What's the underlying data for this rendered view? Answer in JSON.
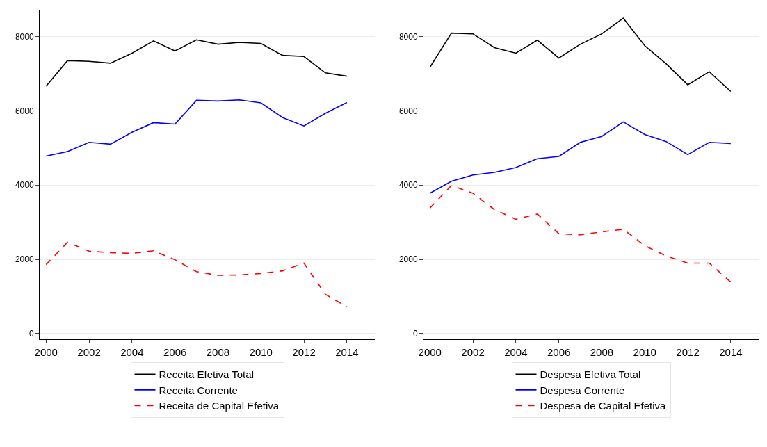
{
  "chart_data": [
    {
      "type": "line",
      "x": [
        2000,
        2001,
        2002,
        2003,
        2004,
        2005,
        2006,
        2007,
        2008,
        2009,
        2010,
        2011,
        2012,
        2013,
        2014
      ],
      "xlim": [
        1999.7,
        2015.3
      ],
      "xticks": [
        2000,
        2002,
        2004,
        2006,
        2008,
        2010,
        2012,
        2014
      ],
      "ylim": [
        -150,
        8700
      ],
      "yticks": [
        0,
        2000,
        4000,
        6000,
        8000
      ],
      "grid": "y",
      "legend": "bottom",
      "marker": "none",
      "series": [
        {
          "name": "Receita Efetiva Total",
          "color": "#000000",
          "line_style": "solid",
          "values": [
            6660,
            7350,
            7330,
            7280,
            7550,
            7880,
            7610,
            7910,
            7790,
            7840,
            7810,
            7490,
            7460,
            7020,
            6930
          ]
        },
        {
          "name": "Receita Corrente",
          "color": "#0000ff",
          "line_style": "solid",
          "values": [
            4780,
            4900,
            5150,
            5100,
            5420,
            5680,
            5640,
            6280,
            6260,
            6290,
            6210,
            5820,
            5590,
            5930,
            6220
          ]
        },
        {
          "name": "Receita de Capital Efetiva",
          "color": "#ff0000",
          "line_style": "dashed",
          "values": [
            1860,
            2460,
            2220,
            2180,
            2160,
            2230,
            1990,
            1670,
            1570,
            1580,
            1620,
            1690,
            1900,
            1060,
            720
          ]
        }
      ]
    },
    {
      "type": "line",
      "x": [
        2000,
        2001,
        2002,
        2003,
        2004,
        2005,
        2006,
        2007,
        2008,
        2009,
        2010,
        2011,
        2012,
        2013,
        2014
      ],
      "xlim": [
        1999.7,
        2015.3
      ],
      "xticks": [
        2000,
        2002,
        2004,
        2006,
        2008,
        2010,
        2012,
        2014
      ],
      "ylim": [
        -150,
        8700
      ],
      "yticks": [
        0,
        2000,
        4000,
        6000,
        8000
      ],
      "grid": "y",
      "legend": "bottom",
      "marker": "none",
      "series": [
        {
          "name": "Despesa Efetiva Total",
          "color": "#000000",
          "line_style": "solid",
          "values": [
            7170,
            8090,
            8070,
            7700,
            7550,
            7900,
            7420,
            7790,
            8070,
            8490,
            7750,
            7260,
            6700,
            7050,
            6520
          ]
        },
        {
          "name": "Despesa Corrente",
          "color": "#0000ff",
          "line_style": "solid",
          "values": [
            3780,
            4100,
            4270,
            4340,
            4470,
            4710,
            4770,
            5150,
            5310,
            5700,
            5360,
            5170,
            4820,
            5150,
            5120
          ]
        },
        {
          "name": "Despesa de Capital Efetiva",
          "color": "#ff0000",
          "line_style": "dashed",
          "values": [
            3380,
            3990,
            3780,
            3340,
            3080,
            3220,
            2690,
            2660,
            2740,
            2810,
            2370,
            2090,
            1900,
            1900,
            1390
          ]
        }
      ]
    }
  ]
}
